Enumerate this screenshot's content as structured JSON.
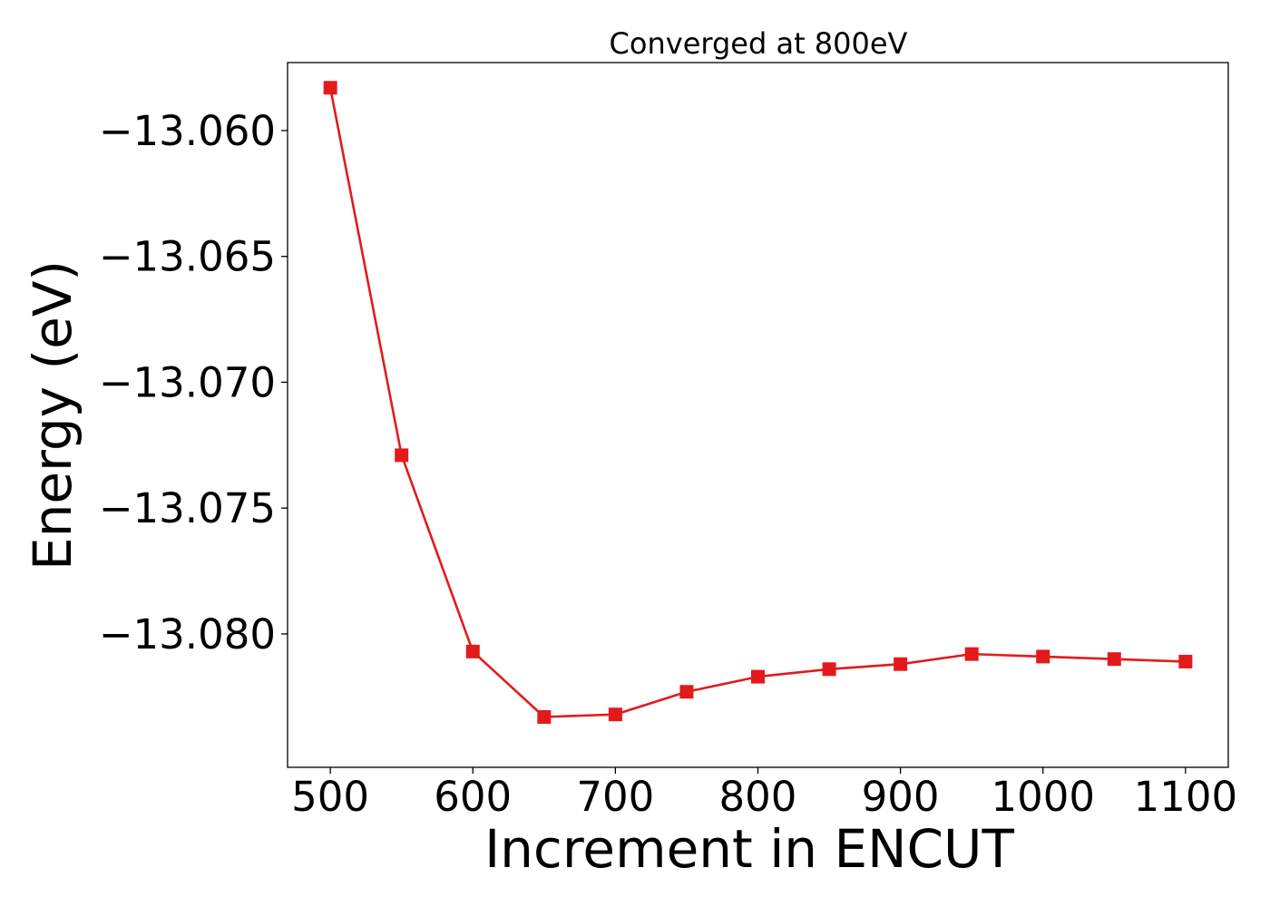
{
  "chart_data": {
    "type": "line",
    "title": "Converged at 800eV",
    "xlabel": "Increment in ENCUT",
    "ylabel": "Energy (eV)",
    "xlim": [
      470,
      1130
    ],
    "ylim": [
      -13.0853,
      -13.0573
    ],
    "xticks": [
      500,
      600,
      700,
      800,
      900,
      1000,
      1100
    ],
    "yticks": [
      -13.06,
      -13.065,
      -13.07,
      -13.075,
      -13.08
    ],
    "ytick_labels": [
      "−13.060",
      "−13.065",
      "−13.070",
      "−13.075",
      "−13.080"
    ],
    "grid": false,
    "series": [
      {
        "color": "#e31a1c",
        "marker": "square",
        "x": [
          500,
          550,
          600,
          650,
          700,
          750,
          800,
          850,
          900,
          950,
          1000,
          1050,
          1100
        ],
        "y": [
          -13.0583,
          -13.0729,
          -13.0807,
          -13.0833,
          -13.0832,
          -13.0823,
          -13.0817,
          -13.0814,
          -13.0812,
          -13.0808,
          -13.0809,
          -13.081,
          -13.0811
        ]
      }
    ]
  }
}
